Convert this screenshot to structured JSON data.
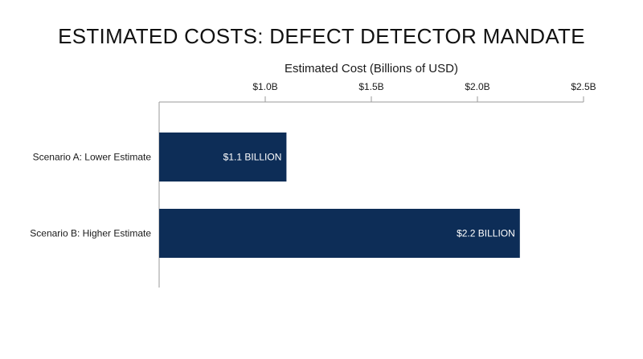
{
  "chart_data": {
    "type": "bar",
    "orientation": "horizontal",
    "title": "ESTIMATED COSTS: DEFECT DETECTOR MANDATE",
    "xlabel": "Estimated Cost (Billions of USD)",
    "ylabel": "",
    "x_axis_position": "top",
    "xlim": [
      0.5,
      2.5
    ],
    "ticks": [
      {
        "value": 1.0,
        "label": "$1.0B"
      },
      {
        "value": 1.5,
        "label": "$1.5B"
      },
      {
        "value": 2.0,
        "label": "$2.0B"
      },
      {
        "value": 2.5,
        "label": "$2.5B"
      }
    ],
    "categories": [
      "Scenario A: Lower Estimate",
      "Scenario B: Higher Estimate"
    ],
    "values": [
      1.1,
      2.2
    ],
    "data_labels": [
      "$1.1 BILLION",
      "$2.2 BILLION"
    ],
    "bar_color": "#0d2d57",
    "axis_color": "#9a9a9a",
    "grid": false,
    "legend": "none"
  }
}
